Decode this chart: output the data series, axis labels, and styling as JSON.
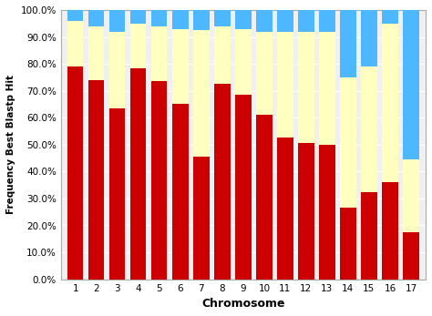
{
  "chromosomes": [
    1,
    2,
    3,
    4,
    5,
    6,
    7,
    8,
    9,
    10,
    11,
    12,
    13,
    14,
    15,
    16,
    17
  ],
  "red_values": [
    79.0,
    74.0,
    63.5,
    78.5,
    73.5,
    65.0,
    45.5,
    72.5,
    68.5,
    61.0,
    52.5,
    50.5,
    50.0,
    26.5,
    32.5,
    36.0,
    17.5
  ],
  "yellow_values": [
    17.0,
    20.0,
    28.5,
    16.5,
    20.5,
    28.0,
    47.0,
    21.5,
    24.5,
    31.0,
    39.5,
    41.5,
    42.0,
    48.5,
    46.5,
    59.0,
    27.0
  ],
  "blue_values": [
    4.0,
    6.0,
    8.0,
    5.0,
    6.0,
    7.0,
    7.5,
    6.0,
    7.0,
    8.0,
    8.0,
    8.0,
    8.0,
    25.0,
    21.0,
    5.0,
    55.5
  ],
  "red_color": "#cc0000",
  "yellow_color": "#ffffc0",
  "blue_color": "#4db8ff",
  "xlabel": "Chromosome",
  "ylabel": "Frequency Best Blastp Hit",
  "yticks": [
    0.0,
    10.0,
    20.0,
    30.0,
    40.0,
    50.0,
    60.0,
    70.0,
    80.0,
    90.0,
    100.0
  ],
  "plot_bg_color": "#f0f0f0",
  "fig_bg_color": "#ffffff",
  "grid_color": "#ffffff",
  "figsize": [
    4.74,
    3.47
  ],
  "dpi": 100,
  "bar_width": 0.75
}
